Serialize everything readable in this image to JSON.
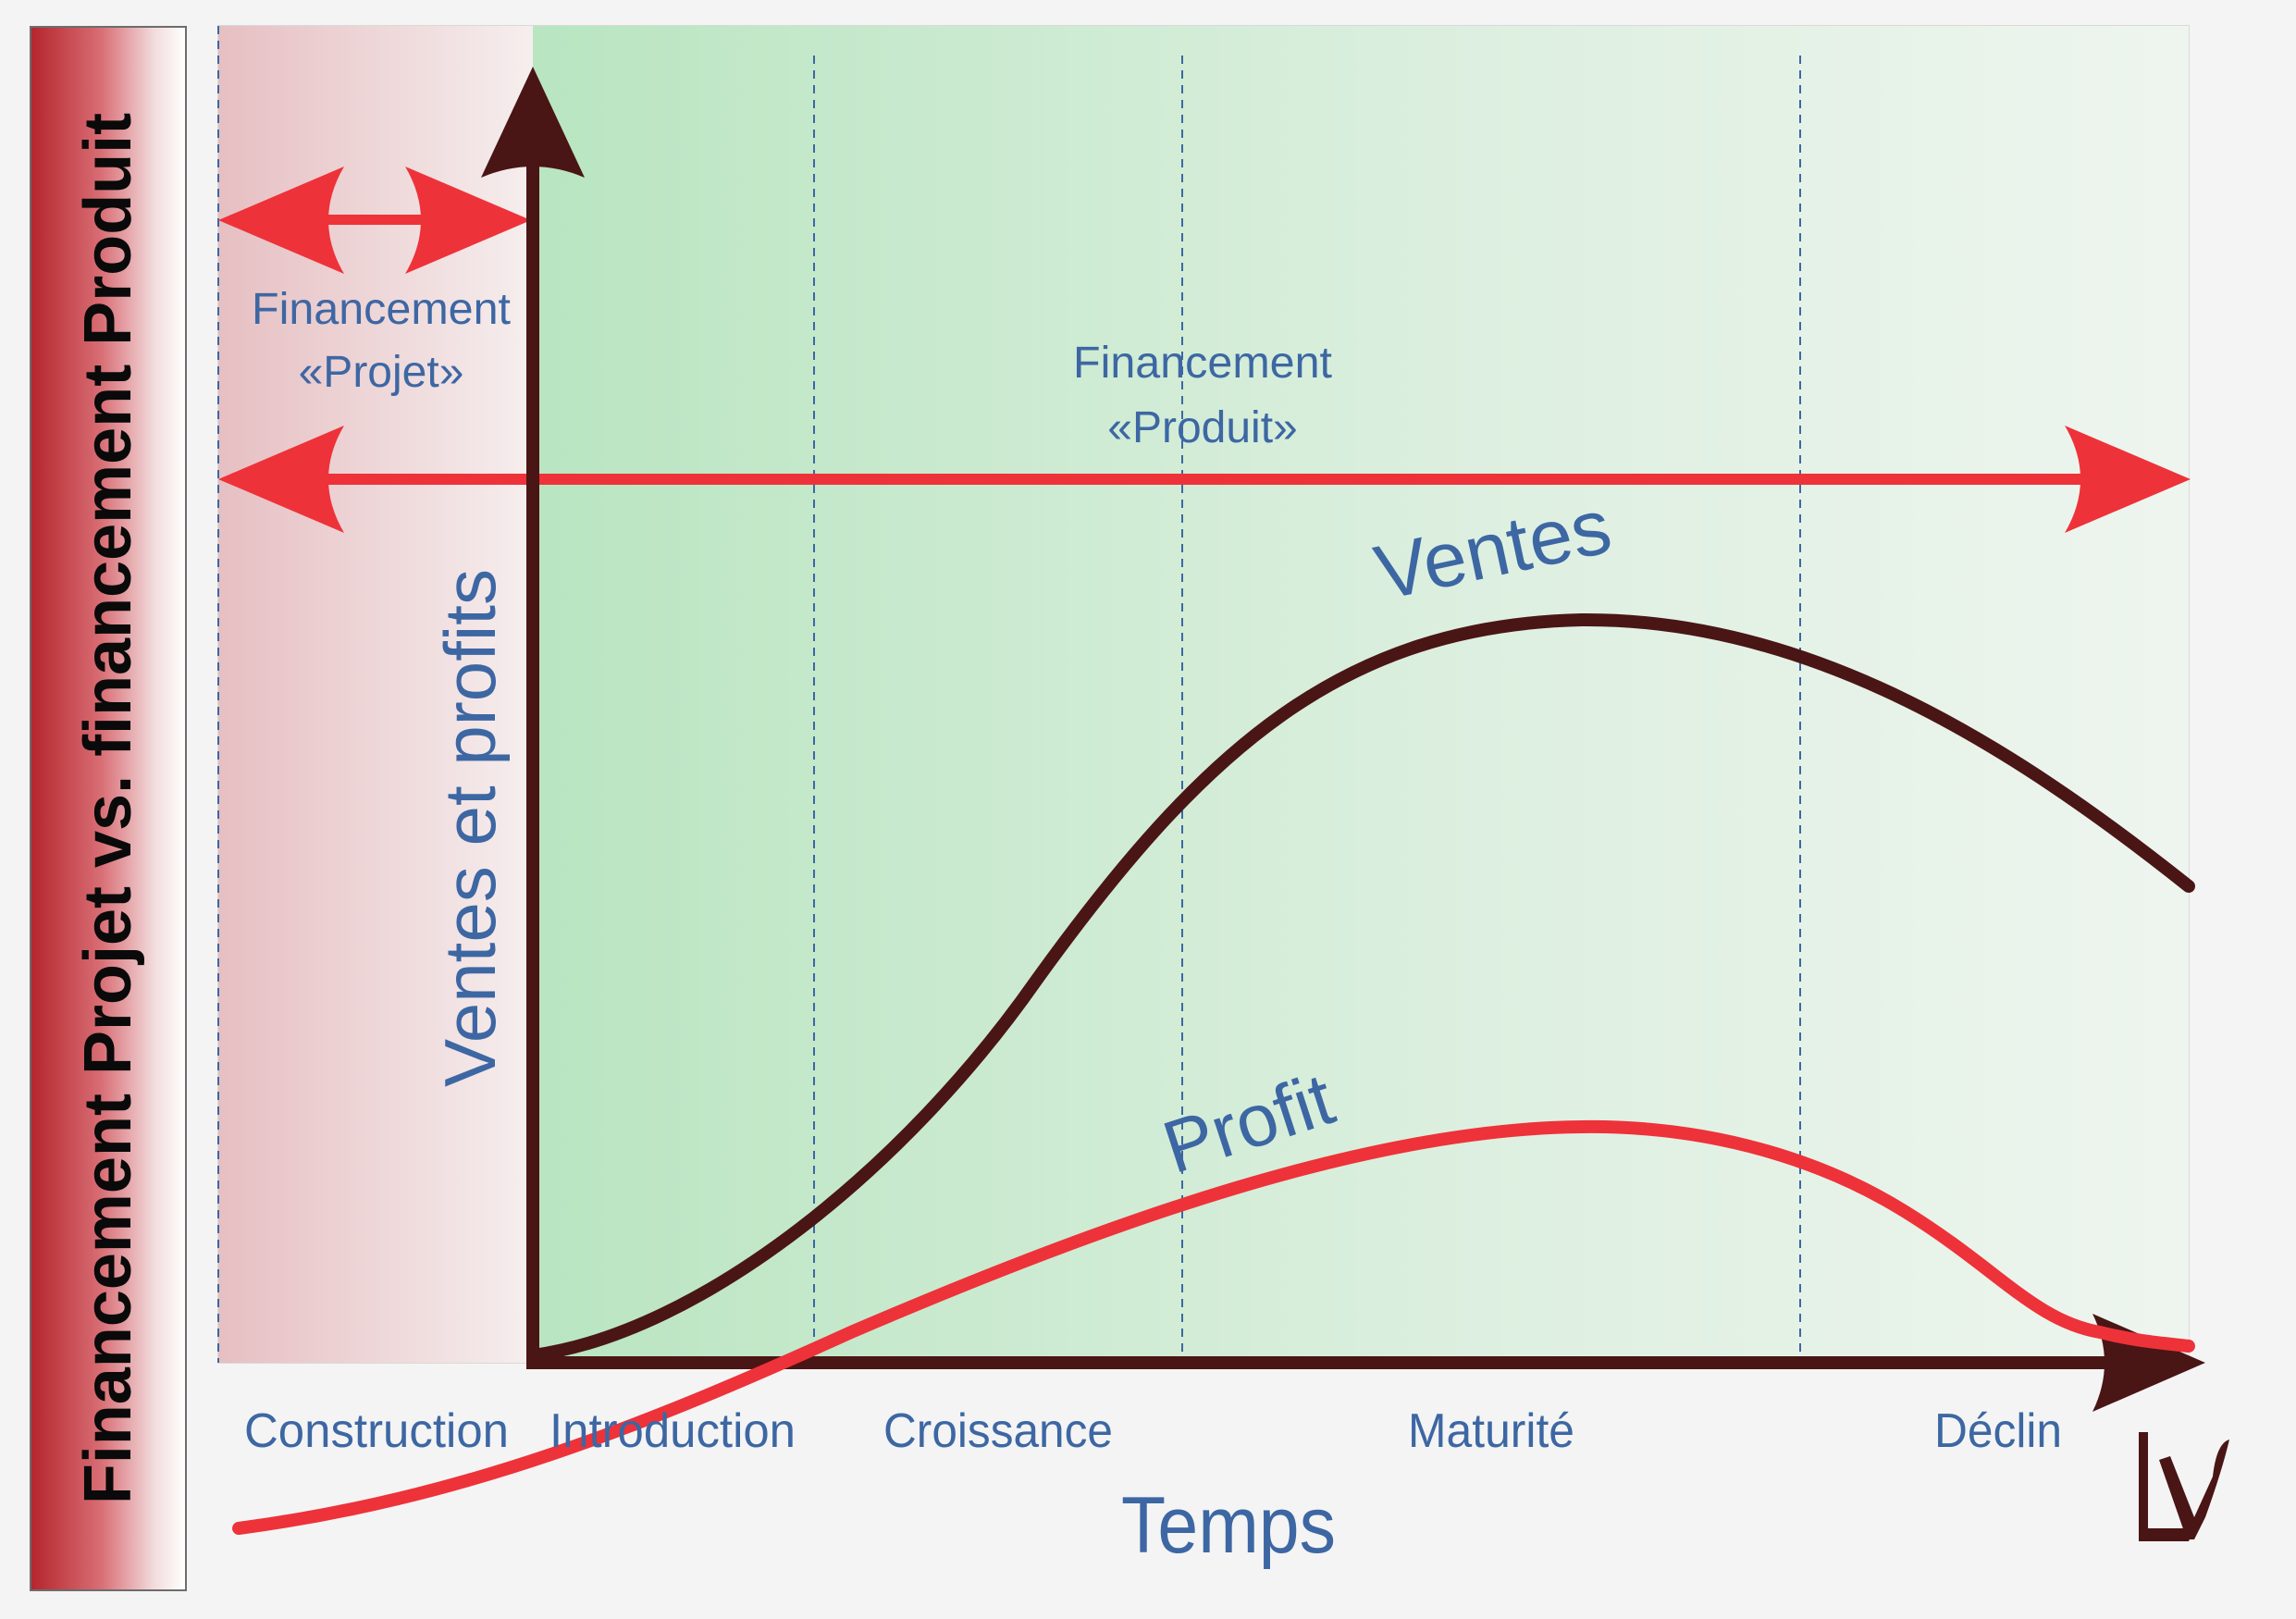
{
  "side_title": "Financement Projet vs. financement Produit",
  "y_axis_label": "Ventes et profits",
  "x_axis_label": "Temps",
  "financing": {
    "projet_line1": "Financement",
    "projet_line2": "«Projet»",
    "produit_line1": "Financement",
    "produit_line2": "«Produit»"
  },
  "curves": {
    "ventes_label": "Ventes",
    "profit_label": "Profit"
  },
  "phases": [
    "Construction",
    "Introduction",
    "Croissance",
    "Maturité",
    "Déclin"
  ],
  "colors": {
    "axis": "#4a1515",
    "arrow_red": "#ee3239",
    "profit": "#ee3239",
    "ventes": "#4a1515",
    "text_blue": "#3d67a3",
    "banner": "#b5262d",
    "construction_zone": "#e9c4c7",
    "product_zone": "#bde6c5"
  },
  "logo_icon": "lv-logo-icon"
}
